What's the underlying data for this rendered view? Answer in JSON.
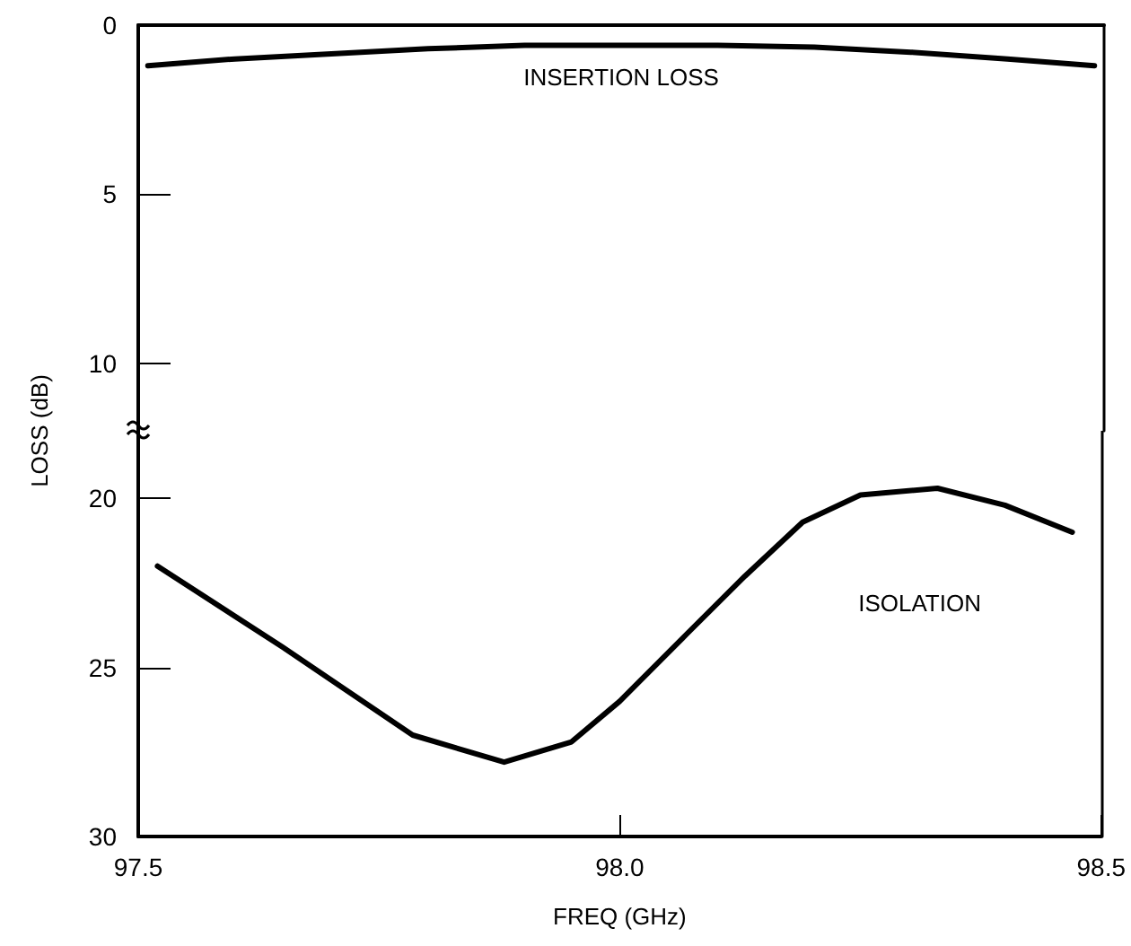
{
  "chart_data": [
    {
      "type": "line",
      "ylabel": "LOSS (dB)",
      "x": [
        97.51,
        97.6,
        97.7,
        97.8,
        97.9,
        98.0,
        98.1,
        98.2,
        98.3,
        98.4,
        98.49
      ],
      "series": [
        {
          "name": "INSERTION LOSS",
          "color": "#000000",
          "values": [
            1.2,
            1.0,
            0.85,
            0.7,
            0.6,
            0.6,
            0.6,
            0.65,
            0.8,
            1.0,
            1.2
          ]
        }
      ],
      "xlim": [
        97.5,
        98.5
      ],
      "ylim": [
        12,
        0
      ],
      "yticks": [
        0,
        5,
        10
      ],
      "tick_labels": "y",
      "marker": "none",
      "line_style": "solid"
    },
    {
      "type": "line",
      "xlabel": "FREQ (GHz)",
      "x": [
        97.52,
        97.65,
        97.785,
        97.88,
        97.95,
        98.0,
        98.07,
        98.13,
        98.19,
        98.25,
        98.33,
        98.4,
        98.47
      ],
      "series": [
        {
          "name": "ISOLATION",
          "color": "#000000",
          "values": [
            22.0,
            24.4,
            27.0,
            27.8,
            27.2,
            26.0,
            24.0,
            22.3,
            20.7,
            19.9,
            19.7,
            20.2,
            21.0
          ]
        }
      ],
      "xlim": [
        97.5,
        98.5
      ],
      "xticks": [
        97.5,
        {
          "value": 98,
          "label": "98.0"
        },
        98.5
      ],
      "ylim": [
        30,
        18
      ],
      "yticks": [
        20,
        25,
        30
      ],
      "marker": "none",
      "line_style": "solid"
    }
  ]
}
